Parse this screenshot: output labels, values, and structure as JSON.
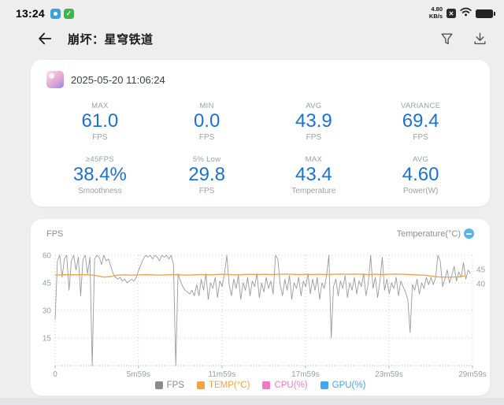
{
  "status_bar": {
    "time": "13:24",
    "net_speed_value": "4.80",
    "net_speed_unit": "KB/s",
    "check_glyph": "✓",
    "sim_glyph": "✕"
  },
  "header": {
    "title": "崩坏：星穹铁道"
  },
  "session": {
    "timestamp": "2025-05-20 11:06:24"
  },
  "stats": [
    {
      "label": "MAX",
      "value": "61.0",
      "unit": "FPS"
    },
    {
      "label": "MIN",
      "value": "0.0",
      "unit": "FPS"
    },
    {
      "label": "AVG",
      "value": "43.9",
      "unit": "FPS"
    },
    {
      "label": "VARIANCE",
      "value": "69.4",
      "unit": "FPS"
    },
    {
      "label": "≥45FPS",
      "value": "38.4%",
      "unit": "Smoothness"
    },
    {
      "label": "5% Low",
      "value": "29.8",
      "unit": "FPS"
    },
    {
      "label": "MAX",
      "value": "43.4",
      "unit": "Temperature"
    },
    {
      "label": "AVG",
      "value": "4.60",
      "unit": "Power(W)"
    }
  ],
  "chart": {
    "left_title": "FPS",
    "right_title": "Temperature(°C)"
  },
  "chart_data": {
    "type": "line",
    "title": "FPS and Temperature over session time",
    "x_unit": "seconds",
    "x_max": 1799,
    "x_ticks": [
      {
        "t": 0,
        "label": "0"
      },
      {
        "t": 359,
        "label": "5m59s"
      },
      {
        "t": 719,
        "label": "11m59s"
      },
      {
        "t": 1079,
        "label": "17m59s"
      },
      {
        "t": 1439,
        "label": "23m59s"
      },
      {
        "t": 1799,
        "label": "29m59s"
      }
    ],
    "left_axis": {
      "label": "FPS",
      "ticks": [
        60,
        45,
        30,
        15
      ],
      "range": [
        0,
        60
      ]
    },
    "right_axis": {
      "label": "Temperature(°C)",
      "ticks": [
        45,
        40
      ]
    },
    "series": [
      {
        "name": "FPS",
        "axis": "left",
        "color": "#9a9a9a",
        "width": 0.9,
        "t_step": 10,
        "values": [
          25,
          57,
          60,
          48,
          58,
          60,
          41,
          57,
          60,
          52,
          59,
          38,
          58,
          60,
          50,
          59,
          0,
          58,
          60,
          59,
          55,
          60,
          57,
          58,
          54,
          50,
          48,
          47,
          48,
          46,
          47,
          45,
          46,
          47,
          46,
          48,
          52,
          55,
          58,
          60,
          59,
          60,
          58,
          60,
          59,
          57,
          60,
          59,
          60,
          58,
          60,
          55,
          0,
          50,
          46,
          43,
          41,
          40,
          39,
          41,
          38,
          44,
          38,
          47,
          41,
          50,
          36,
          45,
          42,
          48,
          37,
          46,
          43,
          50,
          60,
          44,
          38,
          47,
          42,
          49,
          36,
          45,
          41,
          48,
          38,
          46,
          43,
          50,
          37,
          45,
          40,
          48,
          42,
          46,
          39,
          60,
          58,
          44,
          38,
          47,
          41,
          49,
          36,
          45,
          42,
          48,
          38,
          46,
          43,
          50,
          39,
          47,
          41,
          48,
          36,
          45,
          42,
          49,
          60,
          15,
          43,
          47,
          38,
          46,
          42,
          49,
          37,
          45,
          41,
          48,
          39,
          46,
          43,
          50,
          38,
          45,
          60,
          42,
          48,
          37,
          46,
          59,
          41,
          47,
          39,
          45,
          42,
          48,
          38,
          46,
          43,
          40,
          36,
          18,
          44,
          41,
          47,
          39,
          45,
          42,
          48,
          44,
          48,
          44,
          48,
          60,
          57,
          43,
          47,
          52,
          45,
          49,
          54,
          46,
          51,
          48,
          56,
          47,
          52,
          50
        ]
      },
      {
        "name": "TEMP(°C)",
        "axis": "right",
        "color": "#f2a44e",
        "width": 1.4,
        "t_step": 30,
        "values": [
          43.0,
          43.1,
          43.2,
          43.1,
          43.2,
          43.1,
          42.8,
          42.3,
          42.5,
          43.0,
          43.1,
          43.0,
          43.1,
          43.2,
          43.1,
          43.0,
          43.1,
          43.2,
          43.1,
          43.0,
          43.1,
          43.2,
          43.1,
          43.2,
          43.3,
          43.2,
          43.1,
          43.2,
          43.3,
          43.2,
          43.3,
          43.2,
          43.3,
          43.4,
          43.3,
          43.2,
          43.3,
          43.2,
          43.3,
          43.2,
          43.3,
          43.4,
          43.3,
          43.4,
          43.3,
          43.2,
          43.3,
          43.2,
          43.3,
          43.4,
          43.3,
          43.2,
          43.1,
          43.0,
          42.7,
          42.4,
          42.3,
          42.3,
          42.4,
          42.8
        ]
      }
    ],
    "legend": [
      {
        "label": "FPS",
        "color": "#8b8b8b"
      },
      {
        "label": "TEMP(°C)",
        "color": "#f4a43e"
      },
      {
        "label": "CPU(%)",
        "color": "#f277c9"
      },
      {
        "label": "GPU(%)",
        "color": "#3fa7f3"
      }
    ]
  },
  "colors": {
    "accent_blue": "#1a72d8",
    "muted_gray": "#9aa0a6",
    "grid_dot": "#cfcfd4"
  }
}
